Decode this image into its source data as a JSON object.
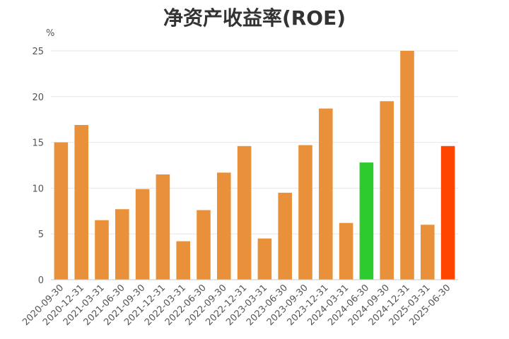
{
  "chart_data": {
    "type": "bar",
    "title": "净资产收益率(ROE)",
    "unit": "%",
    "xlabel": "",
    "ylabel": "",
    "ylim": [
      0,
      25
    ],
    "yticks": [
      0,
      5,
      10,
      15,
      20,
      25
    ],
    "grid": true,
    "categories": [
      "2020-09-30",
      "2020-12-31",
      "2021-03-31",
      "2021-06-30",
      "2021-09-30",
      "2021-12-31",
      "2022-03-31",
      "2022-06-30",
      "2022-09-30",
      "2022-12-31",
      "2023-03-31",
      "2023-06-30",
      "2023-09-30",
      "2023-12-31",
      "2024-03-31",
      "2024-06-30",
      "2024-09-30",
      "2024-12-31",
      "2025-03-31",
      "2025-06-30"
    ],
    "values": [
      15.0,
      16.9,
      6.5,
      7.7,
      9.9,
      11.5,
      4.2,
      7.6,
      11.7,
      14.6,
      4.5,
      9.5,
      14.7,
      18.7,
      6.2,
      12.8,
      19.5,
      25.0,
      6.0,
      14.6
    ],
    "colors": {
      "default": "#E9913A",
      "2024-06-30": "#2DCB2E",
      "2025-06-30": "#FF4500"
    },
    "grid_color": "#E6E6EC",
    "axis_color": "#C8C8C8"
  }
}
